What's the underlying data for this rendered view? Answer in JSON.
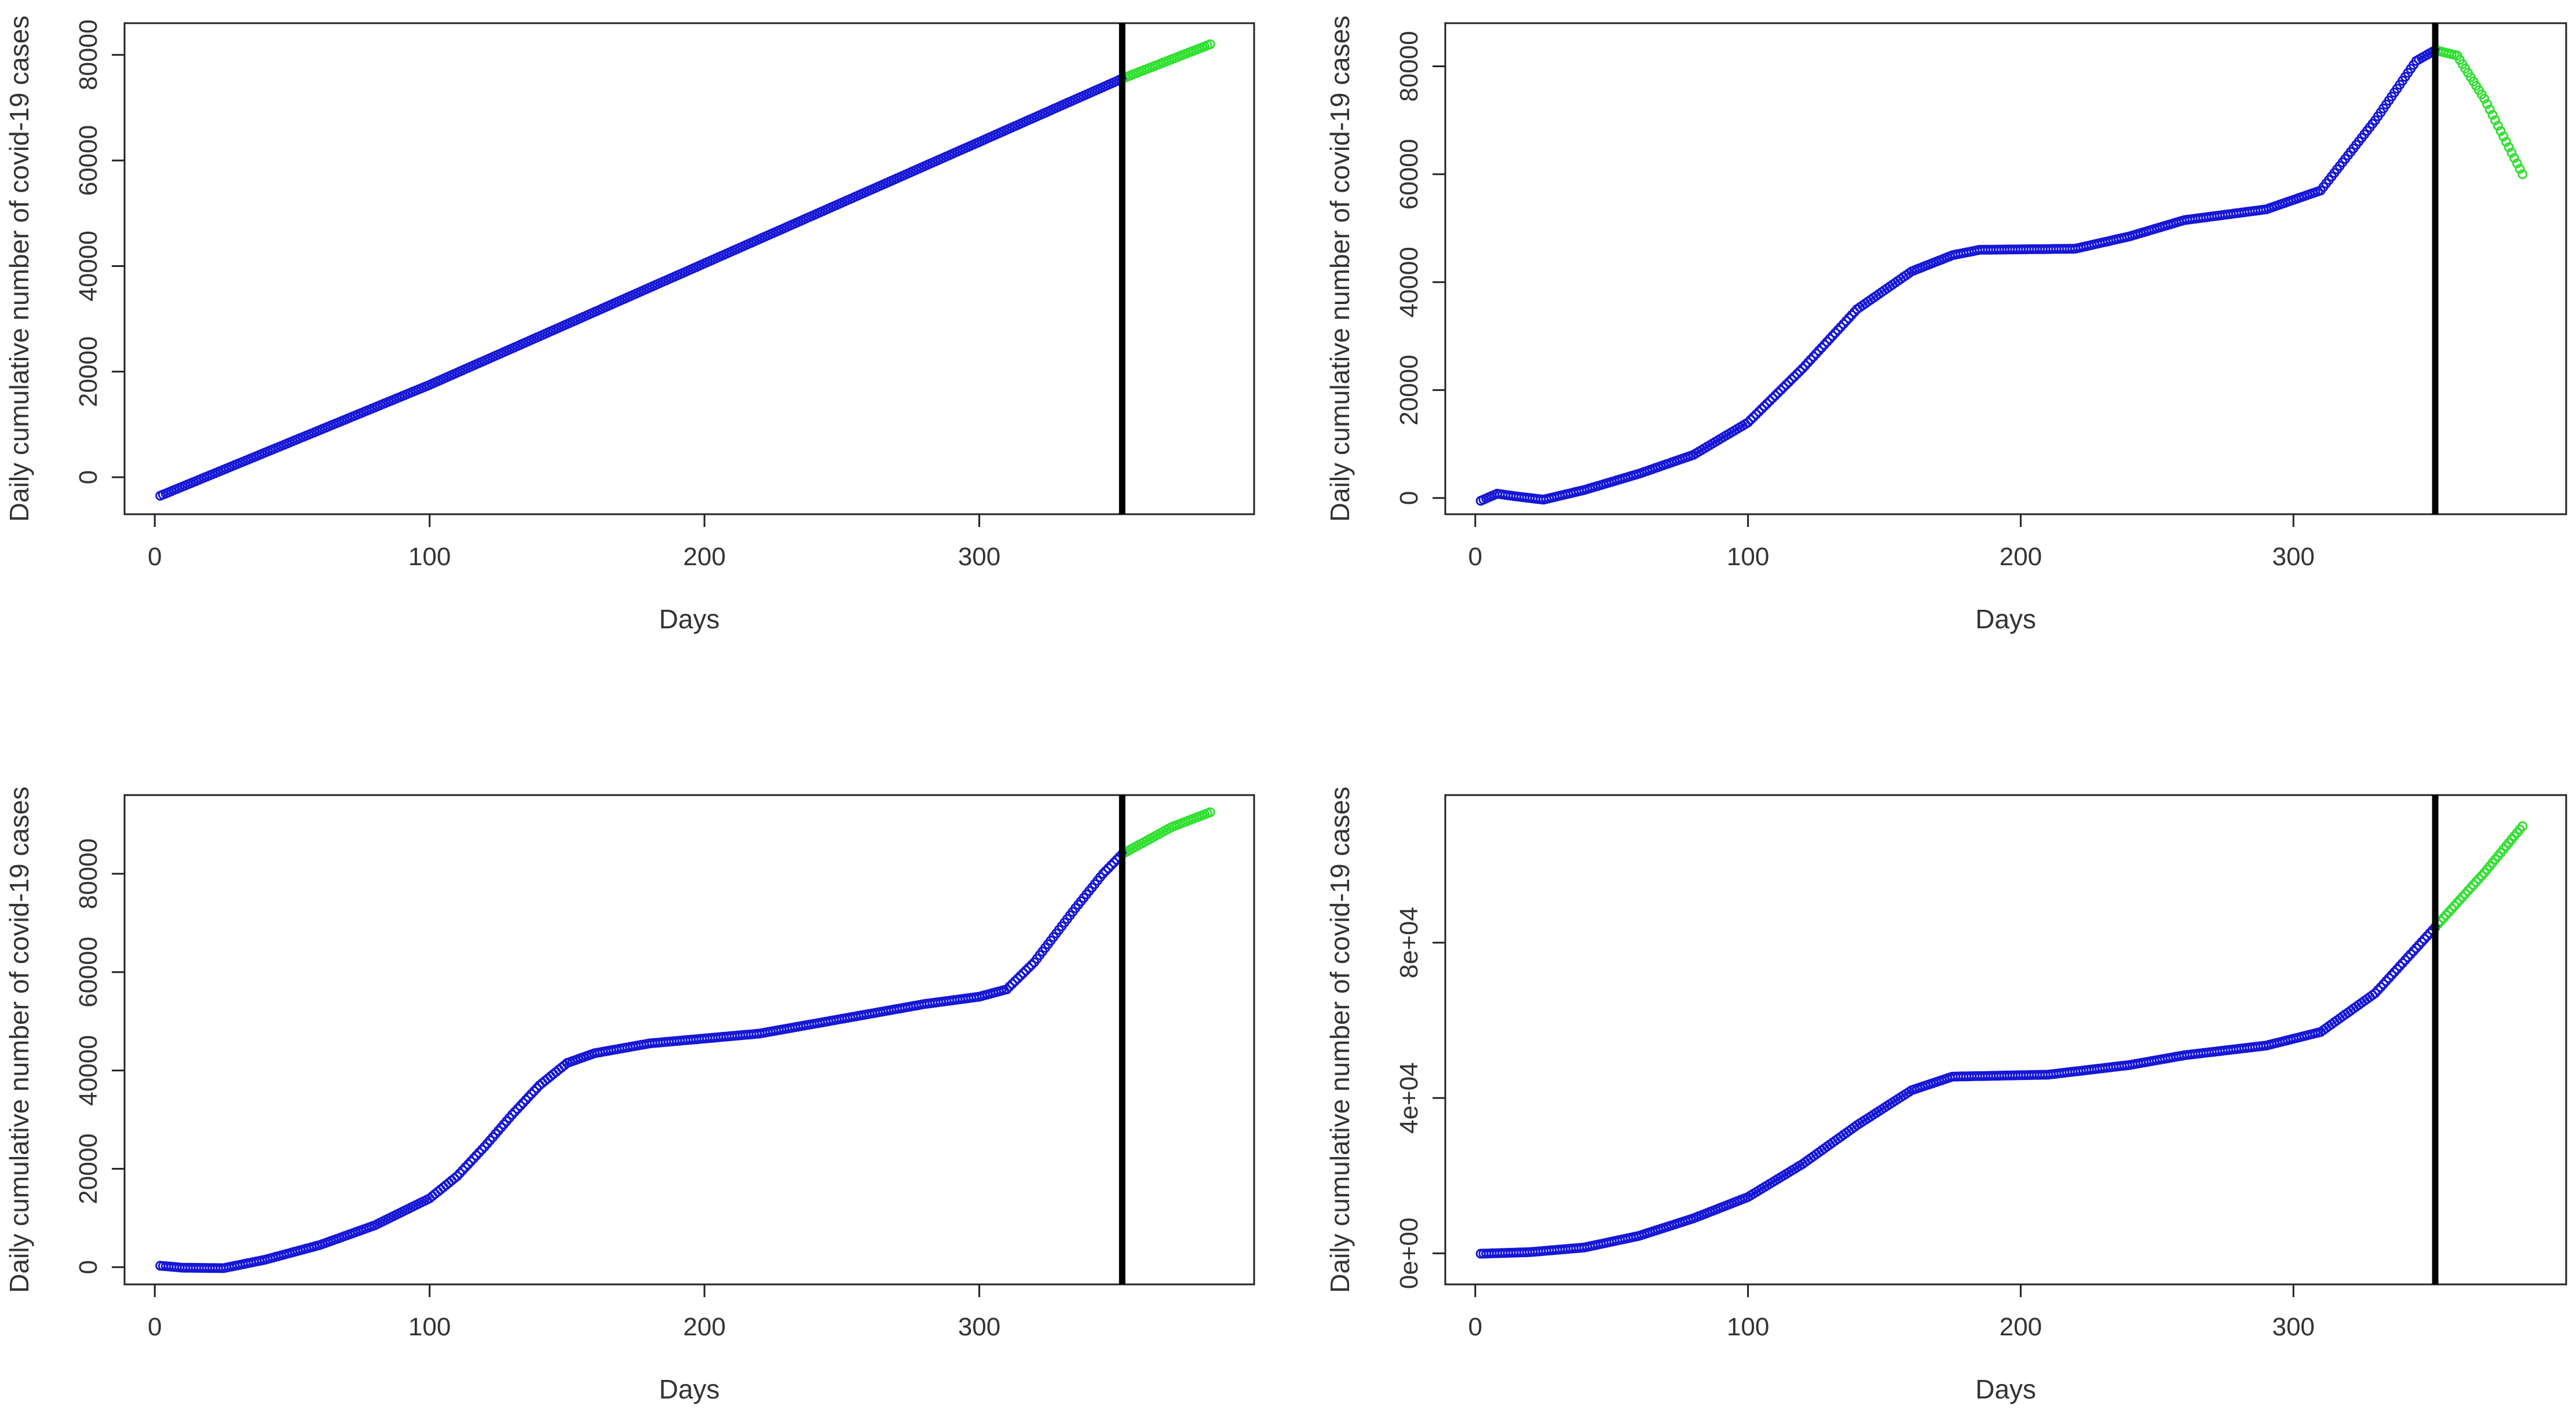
{
  "chart_data": [
    {
      "type": "scatter",
      "xlabel": "Days",
      "ylabel": "Daily cumulative number of covid-19 cases",
      "xlim": [
        -11,
        400
      ],
      "ylim": [
        -7000,
        86000
      ],
      "x_ticks": [
        "0",
        "100",
        "200",
        "300"
      ],
      "x_tick_values": [
        0,
        100,
        200,
        300
      ],
      "y_ticks": [
        "0",
        "20000",
        "40000",
        "60000",
        "80000"
      ],
      "y_tick_values": [
        0,
        20000,
        40000,
        60000,
        80000
      ],
      "cutoff_day": 352,
      "grid": false,
      "fit_color": "#1515d6",
      "forecast_color": "#2fe02f",
      "curve_knots": [
        [
          2,
          -3500
        ],
        [
          100,
          17500
        ],
        [
          200,
          40500
        ],
        [
          300,
          63500
        ],
        [
          352,
          75500
        ],
        [
          384,
          82000
        ]
      ]
    },
    {
      "type": "scatter",
      "xlabel": "Days",
      "ylabel": "Daily cumulative number of covid-19 cases",
      "xlim": [
        -11,
        400
      ],
      "ylim": [
        -3000,
        88000
      ],
      "x_ticks": [
        "0",
        "100",
        "200",
        "300"
      ],
      "x_tick_values": [
        0,
        100,
        200,
        300
      ],
      "y_ticks": [
        "0",
        "20000",
        "40000",
        "60000",
        "80000"
      ],
      "y_tick_values": [
        0,
        20000,
        40000,
        60000,
        80000
      ],
      "cutoff_day": 352,
      "grid": false,
      "fit_color": "#1515d6",
      "forecast_color": "#2fe02f",
      "curve_knots": [
        [
          2,
          -500
        ],
        [
          8,
          800
        ],
        [
          15,
          300
        ],
        [
          25,
          -300
        ],
        [
          40,
          1500
        ],
        [
          60,
          4500
        ],
        [
          80,
          8000
        ],
        [
          100,
          14000
        ],
        [
          120,
          24000
        ],
        [
          140,
          35000
        ],
        [
          160,
          42000
        ],
        [
          175,
          45000
        ],
        [
          185,
          46000
        ],
        [
          220,
          46200
        ],
        [
          240,
          48500
        ],
        [
          260,
          51500
        ],
        [
          290,
          53500
        ],
        [
          310,
          57000
        ],
        [
          330,
          70000
        ],
        [
          345,
          81000
        ],
        [
          352,
          83000
        ],
        [
          360,
          82000
        ],
        [
          370,
          74000
        ],
        [
          384,
          60000
        ]
      ]
    },
    {
      "type": "scatter",
      "xlabel": "Days",
      "ylabel": "Daily cumulative number of covid-19 cases",
      "xlim": [
        -11,
        400
      ],
      "ylim": [
        -3500,
        96000
      ],
      "x_ticks": [
        "0",
        "100",
        "200",
        "300"
      ],
      "x_tick_values": [
        0,
        100,
        200,
        300
      ],
      "y_ticks": [
        "0",
        "20000",
        "40000",
        "60000",
        "80000"
      ],
      "y_tick_values": [
        0,
        20000,
        40000,
        60000,
        80000
      ],
      "cutoff_day": 352,
      "grid": false,
      "fit_color": "#1515d6",
      "forecast_color": "#2fe02f",
      "curve_knots": [
        [
          2,
          300
        ],
        [
          10,
          -100
        ],
        [
          25,
          -200
        ],
        [
          40,
          1500
        ],
        [
          60,
          4500
        ],
        [
          80,
          8500
        ],
        [
          100,
          14000
        ],
        [
          110,
          18500
        ],
        [
          120,
          24500
        ],
        [
          130,
          31000
        ],
        [
          140,
          37000
        ],
        [
          150,
          41500
        ],
        [
          160,
          43500
        ],
        [
          180,
          45500
        ],
        [
          200,
          46500
        ],
        [
          220,
          47500
        ],
        [
          240,
          49500
        ],
        [
          260,
          51500
        ],
        [
          280,
          53500
        ],
        [
          300,
          55000
        ],
        [
          310,
          56500
        ],
        [
          320,
          62000
        ],
        [
          335,
          73000
        ],
        [
          345,
          80000
        ],
        [
          352,
          84000
        ],
        [
          370,
          89500
        ],
        [
          384,
          92500
        ]
      ]
    },
    {
      "type": "scatter",
      "xlabel": "Days",
      "ylabel": "Daily cumulative number of covid-19 cases",
      "xlim": [
        -11,
        400
      ],
      "ylim": [
        -8000,
        118000
      ],
      "x_ticks": [
        "0",
        "100",
        "200",
        "300"
      ],
      "x_tick_values": [
        0,
        100,
        200,
        300
      ],
      "y_ticks": [
        "0e+00",
        "4e+04",
        "8e+04"
      ],
      "y_tick_values": [
        0,
        40000,
        80000
      ],
      "cutoff_day": 352,
      "grid": false,
      "fit_color": "#1515d6",
      "forecast_color": "#2fe02f",
      "curve_knots": [
        [
          2,
          -100
        ],
        [
          20,
          300
        ],
        [
          40,
          1500
        ],
        [
          60,
          4500
        ],
        [
          80,
          9000
        ],
        [
          100,
          14500
        ],
        [
          120,
          23000
        ],
        [
          140,
          33000
        ],
        [
          160,
          42000
        ],
        [
          175,
          45500
        ],
        [
          210,
          46000
        ],
        [
          240,
          48500
        ],
        [
          260,
          51000
        ],
        [
          290,
          53500
        ],
        [
          310,
          57000
        ],
        [
          330,
          67000
        ],
        [
          352,
          84000
        ],
        [
          370,
          98000
        ],
        [
          384,
          110000
        ]
      ]
    }
  ]
}
